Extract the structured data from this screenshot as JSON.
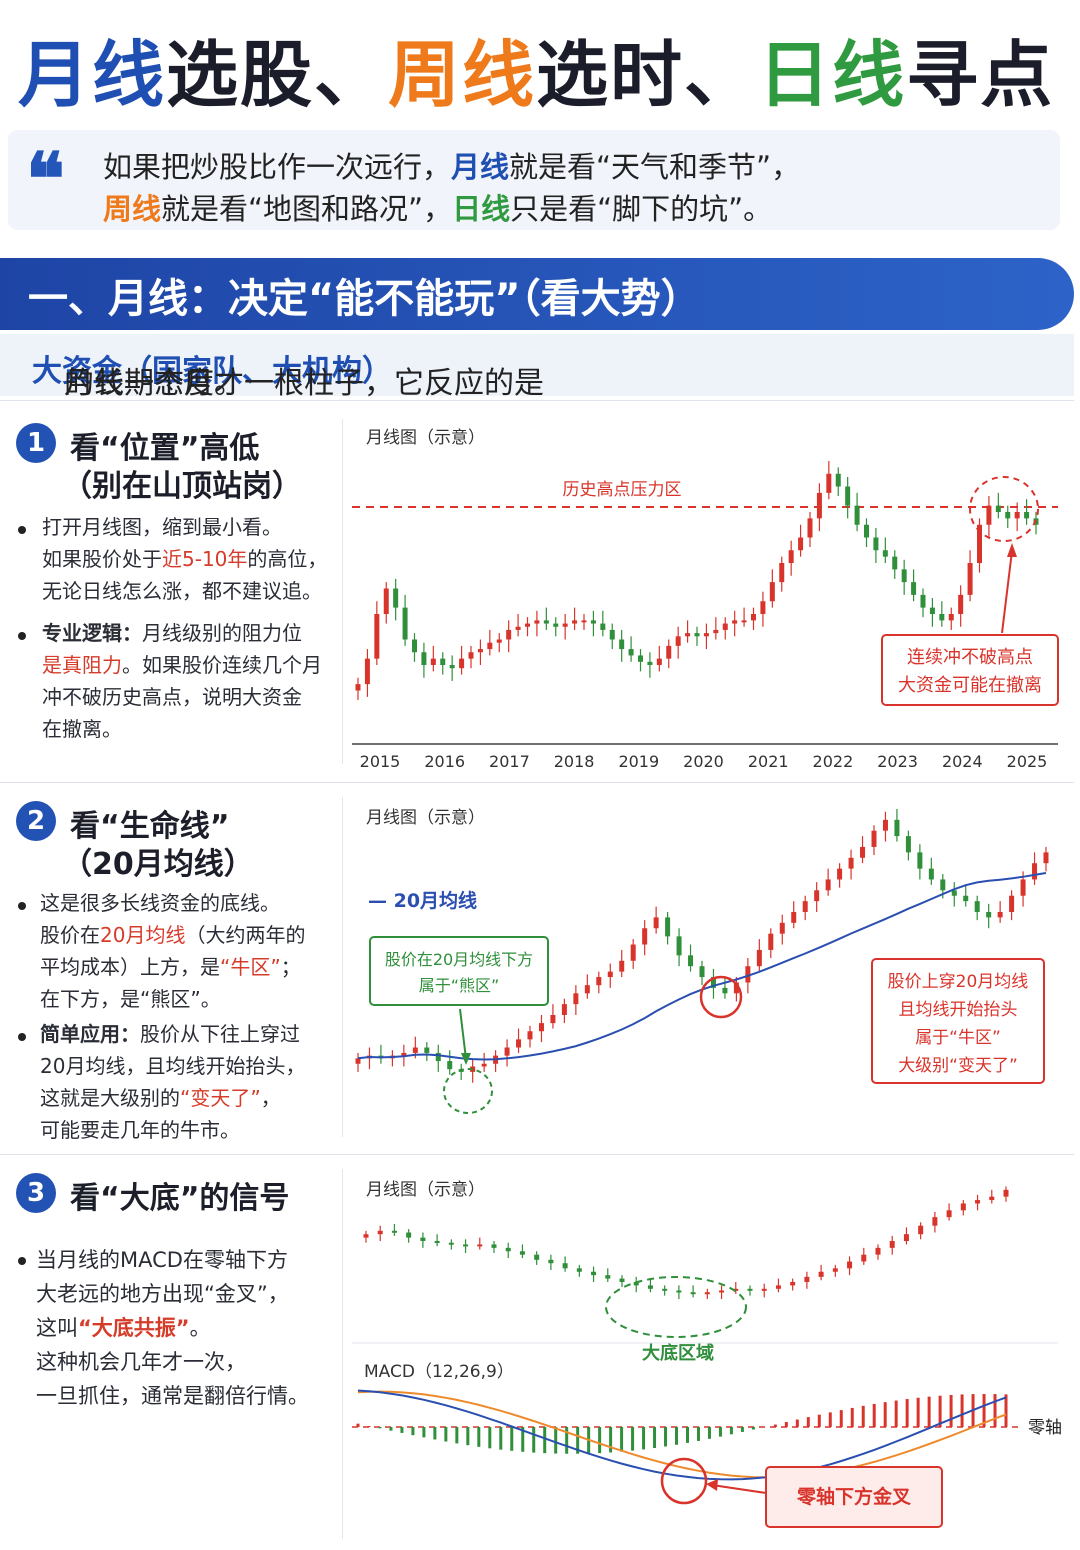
{
  "header": {
    "title_part1": "月线选股、",
    "title_part2": "周线",
    "title_part3": "选时、",
    "title_part4": "日线",
    "title_part5": "寻点",
    "title_prefix": "月线",
    "title_prefix_rest": "选股、"
  },
  "quote": {
    "mark": "“",
    "line1_a": "如果把炒股比作一次远行，",
    "line1_b": "月线",
    "line1_c": "就是看“天气和季节”，",
    "line2_a": "周线",
    "line2_b": "就是看“地图和路况”，",
    "line2_c": "日线",
    "line2_d": "只是看“脚下的坑”。"
  },
  "section": {
    "title": "一、月线：决定“能不能玩”（看大势）",
    "subtitle_a": "月线一个月才一根柱子，它反应的是",
    "subtitle_b": "大资金（国家队、大机构）",
    "subtitle_c": "的长期态度。"
  },
  "panel1": {
    "number": "1",
    "title_line1": "看“位置”高低",
    "title_line2": "（别在山顶站岗）",
    "b1_l1": "打开月线图，缩到最小看。",
    "b1_l2_a": "如果股价处于",
    "b1_l2_b": "近5-10年",
    "b1_l2_c": "的高位，",
    "b1_l3": "无论日线怎么涨，都不建议追。",
    "b2_l1_a": "专业逻辑：",
    "b2_l1_b": "月线级别的阻力位",
    "b2_l2_a": "是真阻力",
    "b2_l2_b": "。如果股价连续几个月",
    "b2_l3": "冲不破历史高点，说明大资金",
    "b2_l4": "在撤离。"
  },
  "panel2": {
    "number": "2",
    "title_line1": "看“生命线”",
    "title_line2": "（20月均线）",
    "b1_l1": "这是很多长线资金的底线。",
    "b1_l2_a": "股价在",
    "b1_l2_b": "20月均线",
    "b1_l2_c": "（大约两年的",
    "b1_l3_a": "平均成本）上方，是",
    "b1_l3_b": "“牛区”",
    "b1_l3_c": "；",
    "b1_l4": "在下方，是“熊区”。",
    "b2_l1_a": "简单应用：",
    "b2_l1_b": "股价从下往上穿过",
    "b2_l2": "20月均线，且均线开始抬头，",
    "b2_l3_a": "这就是大级别的",
    "b2_l3_b": "“变天了”",
    "b2_l3_c": "，",
    "b2_l4": "可能要走几年的牛市。"
  },
  "panel3": {
    "number": "3",
    "title_line1": "看“大底”的信号",
    "b1_l1": "当月线的MACD在零轴下方",
    "b1_l2": "大老远的地方出现“金叉”，",
    "b1_l3_a": "这叫",
    "b1_l3_b": "“大底共振”",
    "b1_l3_c": "。",
    "b1_l4": "这种机会几年才一次，",
    "b1_l5": "一旦抓住，通常是翻倍行情。"
  },
  "chart_data": [
    {
      "type": "candlestick",
      "title": "月线图（示意）",
      "x_ticks": [
        "2015",
        "2016",
        "2017",
        "2018",
        "2019",
        "2020",
        "2021",
        "2022",
        "2023",
        "2024",
        "2025"
      ],
      "resistance_label": "历史高点压力区",
      "annotation": [
        "连续冲不破高点",
        "大资金可能在撤离"
      ],
      "colors": {
        "up": "#d9342b",
        "down": "#2f8f3a",
        "resistance": "#d9342b"
      },
      "closes": [
        30,
        38,
        52,
        60,
        54,
        44,
        40,
        36,
        38,
        36,
        35,
        38,
        40,
        41,
        43,
        44,
        47,
        48,
        49,
        50,
        49,
        48,
        49,
        50,
        50,
        49,
        47,
        44,
        41,
        39,
        37,
        36,
        38,
        42,
        45,
        46,
        45,
        46,
        47,
        49,
        50,
        50,
        52,
        56,
        62,
        68,
        72,
        76,
        82,
        90,
        96,
        92,
        86,
        80,
        76,
        72,
        70,
        66,
        62,
        58,
        54,
        52,
        50,
        52,
        58,
        68,
        80,
        86,
        84,
        82,
        84,
        82,
        80
      ]
    },
    {
      "type": "candlestick",
      "title": "月线图（示意）",
      "ma_label": "— 20月均线",
      "annotation_left": [
        "股价在20月均线下方",
        "属于“熊区”"
      ],
      "annotation_right": [
        "股价上穿20月均线",
        "且均线开始抬头",
        "属于“牛区”",
        "大级别“变天了”"
      ],
      "colors": {
        "up": "#d9342b",
        "down": "#2f8f3a",
        "ma": "#2a4fb0"
      },
      "closes": [
        20,
        21,
        20,
        21,
        22,
        24,
        22,
        19,
        16,
        15,
        17,
        18,
        21,
        24,
        27,
        30,
        33,
        36,
        40,
        44,
        47,
        50,
        52,
        56,
        62,
        68,
        72,
        65,
        58,
        54,
        50,
        46,
        44,
        48,
        54,
        60,
        66,
        70,
        74,
        78,
        82,
        86,
        90,
        94,
        98,
        104,
        108,
        102,
        96,
        90,
        86,
        82,
        80,
        78,
        74,
        72,
        74,
        80,
        86,
        92,
        96
      ]
    },
    {
      "type": "candlestick+macd",
      "title": "月线图（示意）",
      "bottom_label": "大底区域",
      "macd_label": "MACD（12,26,9）",
      "zero_label": "零轴",
      "cross_label": "零轴下方金叉",
      "colors": {
        "up": "#d9342b",
        "down": "#2f8f3a",
        "dif": "#2a4fb0",
        "dea": "#ee8a2c"
      },
      "closes": [
        70,
        72,
        71,
        68,
        66,
        65,
        64,
        63,
        64,
        62,
        60,
        58,
        55,
        53,
        50,
        48,
        46,
        44,
        42,
        40,
        38,
        37,
        36,
        35,
        36,
        37,
        38,
        37,
        38,
        40,
        42,
        45,
        48,
        50,
        54,
        58,
        62,
        66,
        70,
        75,
        80,
        84,
        88,
        90,
        92,
        96
      ]
    }
  ]
}
